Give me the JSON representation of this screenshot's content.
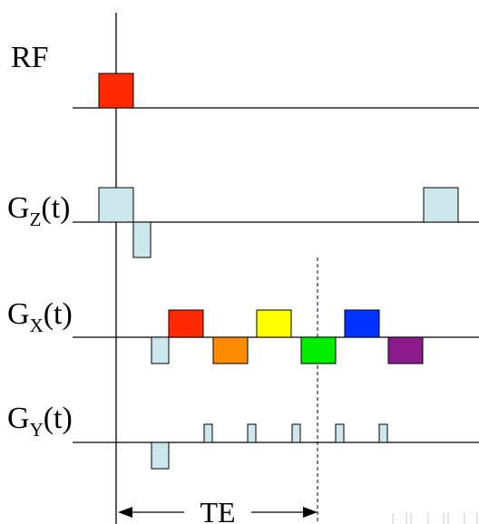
{
  "labels": {
    "rf": "RF",
    "gz": {
      "main": "G",
      "sub": "Z",
      "suffix": "(t)"
    },
    "gx": {
      "main": "G",
      "sub": "X",
      "suffix": "(t)"
    },
    "gy": {
      "main": "G",
      "sub": "Y",
      "suffix": "(t)"
    },
    "te": "TE"
  },
  "colors": {
    "rf_pulse": "#ff2a00",
    "gradient_fill": "#cde8ec",
    "readout_lobes": [
      "#ff2a00",
      "#ff8c00",
      "#ffff00",
      "#00ee00",
      "#0033ff",
      "#8b1a8b"
    ]
  }
}
